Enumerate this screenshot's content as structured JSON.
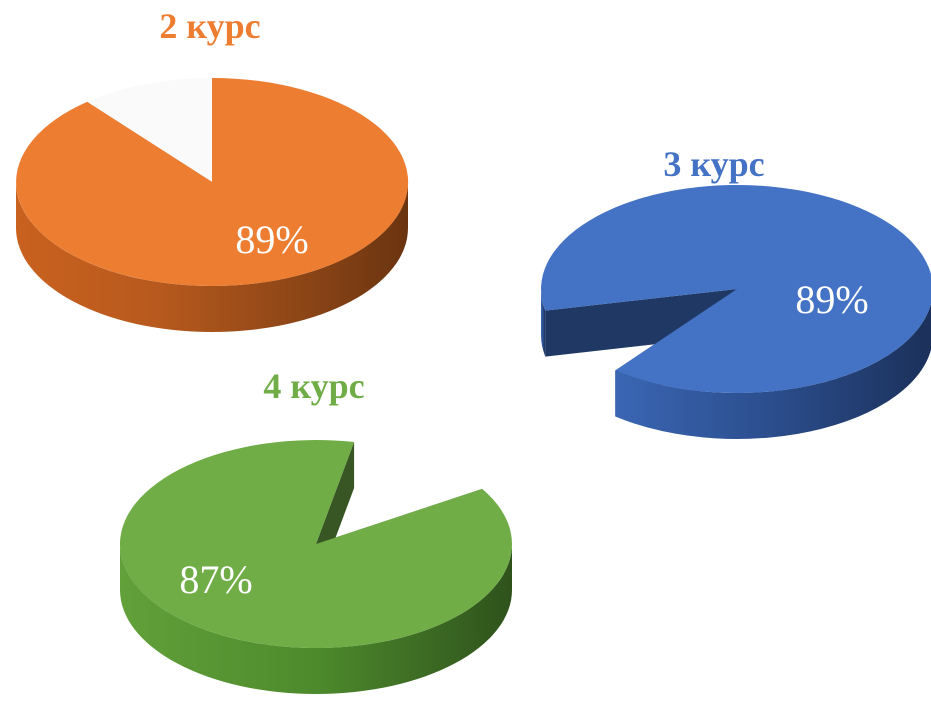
{
  "chart_data": [
    {
      "type": "pie",
      "title": "2 курс",
      "values": [
        89,
        11
      ],
      "data_label": "89%",
      "colors": {
        "main": "#ED7D31",
        "side": "#A9541C",
        "rest": "#FAFAFA",
        "rest_side": "#E9E9E9",
        "title": "#ED7D31"
      }
    },
    {
      "type": "pie",
      "title": "3 курс",
      "values": [
        89,
        11
      ],
      "data_label": "89%",
      "colors": {
        "main": "#4472C4",
        "side": "#1F3864",
        "title": "#4472C4"
      }
    },
    {
      "type": "pie",
      "title": "4 курс",
      "values": [
        87,
        13
      ],
      "data_label": "87%",
      "colors": {
        "main": "#70AD47",
        "side": "#375623",
        "title": "#70AD47"
      }
    }
  ]
}
